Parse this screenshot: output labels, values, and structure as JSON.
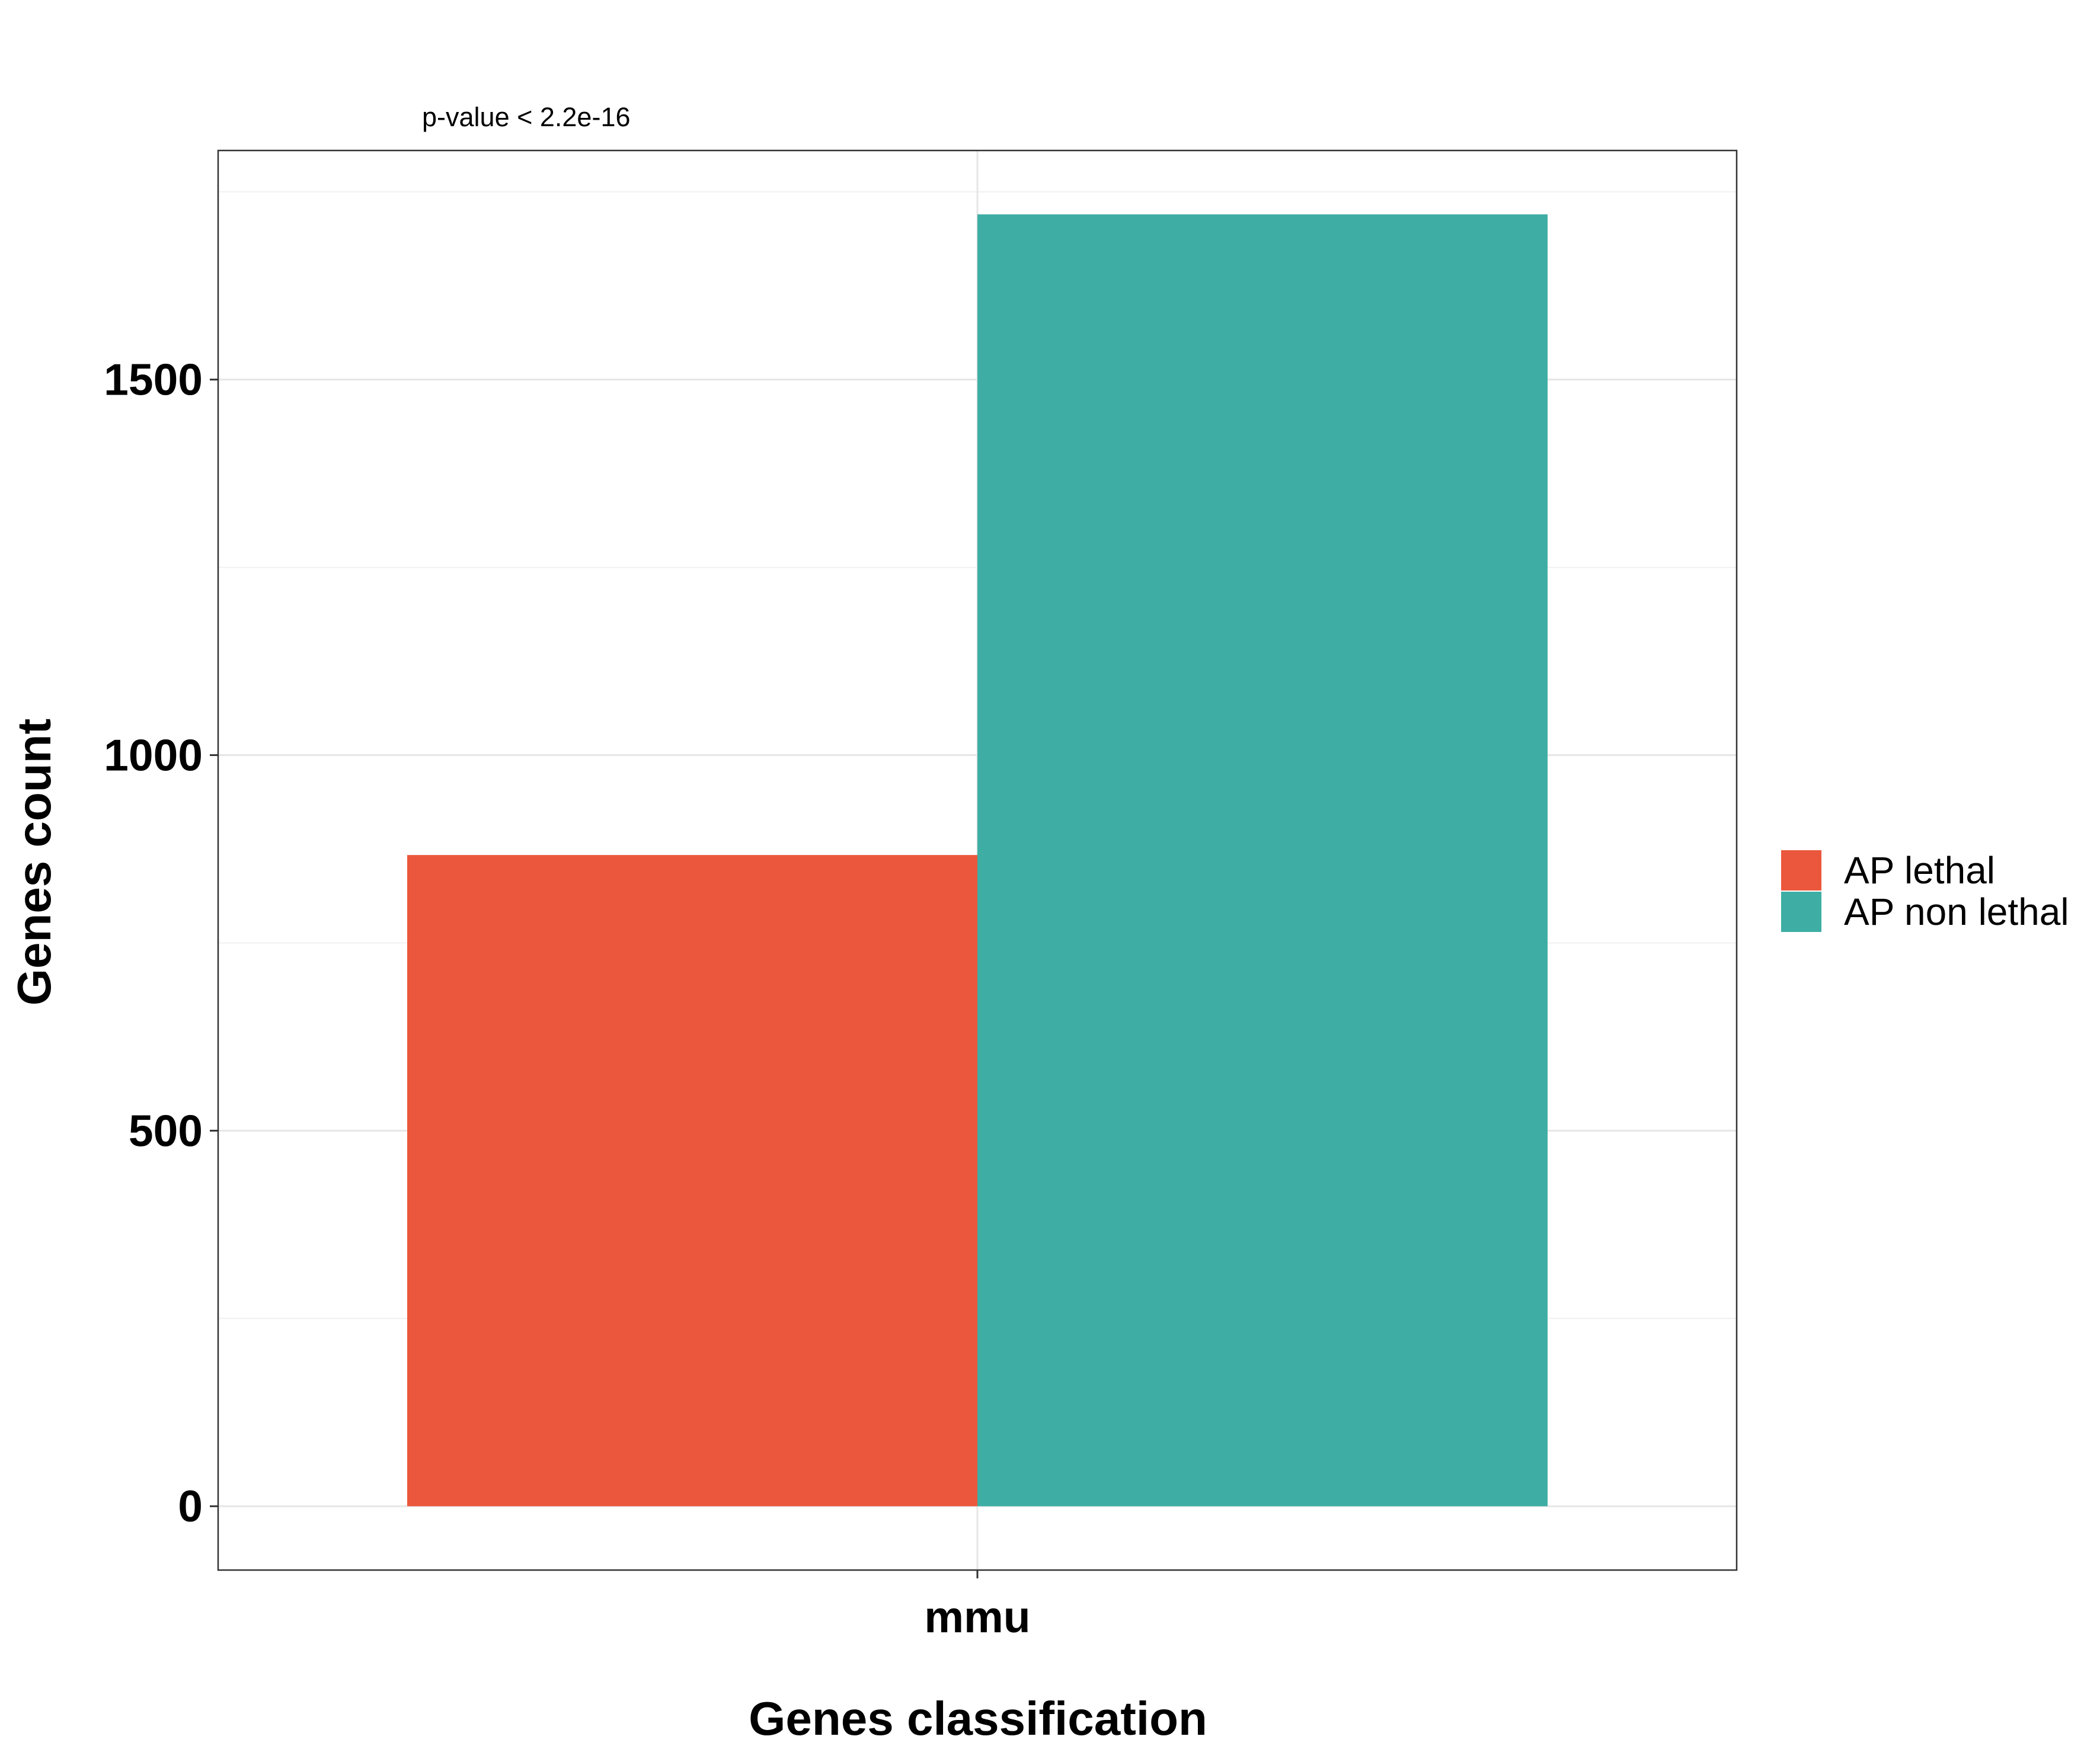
{
  "chart_data": {
    "type": "bar",
    "categories": [
      "mmu"
    ],
    "series": [
      {
        "name": "AP lethal",
        "values": [
          867
        ],
        "color": "#EB573C"
      },
      {
        "name": "AP non lethal",
        "values": [
          1720
        ],
        "color": "#3EAEA5"
      }
    ],
    "annotation": "p-value < 2.2e-16",
    "xlabel": "Genes classification",
    "ylabel": "Genes count",
    "yticks": [
      0,
      500,
      1000,
      1500
    ],
    "ylim": [
      -85,
      1805
    ],
    "grid": true,
    "legend_position": "right"
  }
}
